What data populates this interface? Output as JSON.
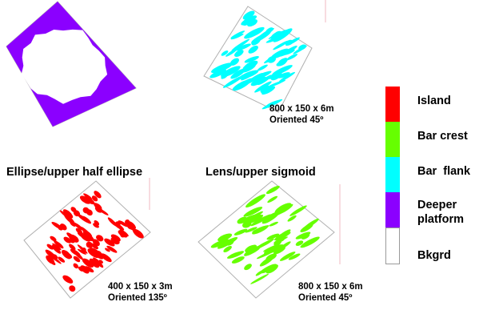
{
  "panels": [
    {
      "id": "deeper-platform",
      "color": "#8B00FF",
      "orientation": "135",
      "title": "",
      "dims": "",
      "orient_label": ""
    },
    {
      "id": "bar-flank",
      "color": "#00FFFF",
      "orientation": "45",
      "title": "",
      "dims": "800 x 150 x 6m",
      "orient_label": "Oriented 45º"
    },
    {
      "id": "island",
      "color": "#FF0000",
      "orientation": "135",
      "title": "Ellipse/upper half ellipse",
      "dims": "400 x 150 x 3m",
      "orient_label": "Oriented 135º"
    },
    {
      "id": "bar-crest",
      "color": "#66FF00",
      "orientation": "45",
      "title": "Lens/upper sigmoid",
      "dims": "800 x 150 x 6m",
      "orient_label": "Oriented 45º"
    }
  ],
  "legend": [
    {
      "label": "Island",
      "color": "#FF0000"
    },
    {
      "label": "Bar crest",
      "color": "#66FF00"
    },
    {
      "label": "Bar  flank",
      "color": "#00FFFF"
    },
    {
      "label": "Deeper platform",
      "color": "#8B00FF"
    },
    {
      "label": "Bkgrd",
      "color": "#FFFFFF"
    }
  ]
}
